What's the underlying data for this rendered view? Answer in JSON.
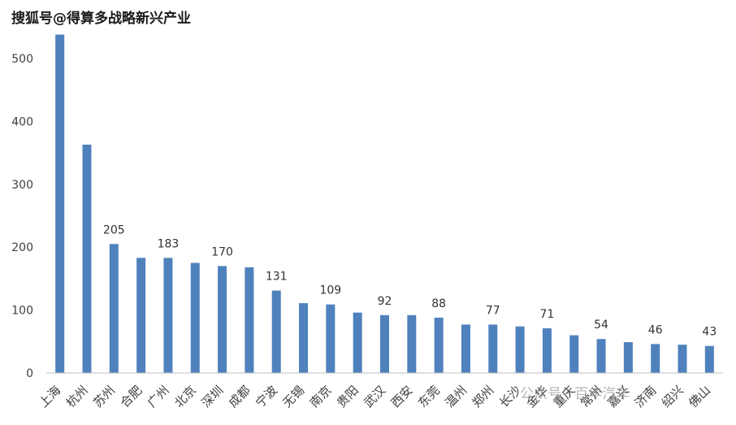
{
  "watermarks": {
    "top": "搜狐号@得算多战略新兴产业",
    "bottom": "公众号 · 百年汽车"
  },
  "colors": {
    "bar": "#4F81BD",
    "axis": "#BFBFBF",
    "tick_text": "#404040",
    "label_text": "#333333"
  },
  "chart_data": {
    "type": "bar",
    "title": "",
    "xlabel": "",
    "ylabel": "",
    "ylim": [
      0,
      540
    ],
    "yticks": [
      0,
      100,
      200,
      300,
      400,
      500
    ],
    "grid": false,
    "categories": [
      "上海",
      "杭州",
      "苏州",
      "合肥",
      "广州",
      "北京",
      "深圳",
      "成都",
      "宁波",
      "无锡",
      "南京",
      "贵阳",
      "武汉",
      "西安",
      "东莞",
      "温州",
      "郑州",
      "长沙",
      "金华",
      "重庆",
      "常州",
      "嘉兴",
      "济南",
      "绍兴",
      "佛山"
    ],
    "values": [
      538,
      363,
      205,
      183,
      183,
      175,
      170,
      168,
      131,
      111,
      109,
      96,
      92,
      92,
      88,
      77,
      77,
      74,
      71,
      60,
      54,
      49,
      46,
      45,
      43
    ],
    "data_labels": [
      null,
      null,
      "205",
      null,
      "183",
      null,
      "170",
      null,
      "131",
      null,
      "109",
      null,
      "92",
      null,
      "88",
      null,
      "77",
      null,
      "71",
      null,
      "54",
      null,
      "46",
      null,
      "43"
    ]
  }
}
